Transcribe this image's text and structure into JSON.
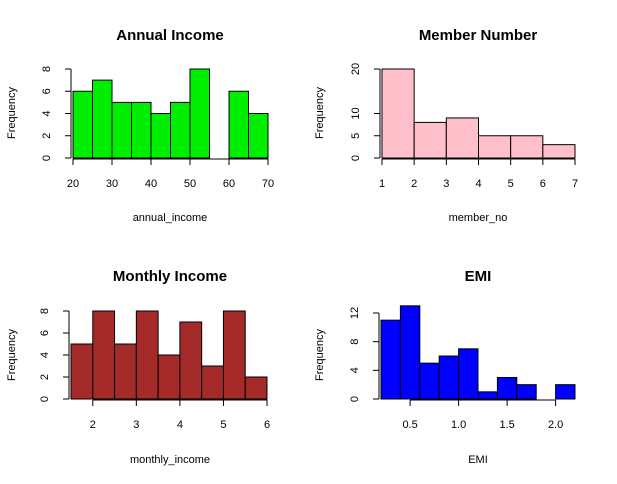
{
  "chart_data": [
    {
      "type": "bar",
      "title": "Annual Income",
      "xlabel": "annual_income",
      "ylabel": "Frequency",
      "color": "#00ee00",
      "bin_edges": [
        20,
        25,
        30,
        35,
        40,
        45,
        50,
        55,
        60,
        65,
        70
      ],
      "values": [
        6,
        7,
        5,
        5,
        4,
        5,
        8,
        0,
        6,
        4
      ],
      "xlim": [
        20,
        70
      ],
      "ylim": [
        0,
        8
      ],
      "xticks": [
        20,
        30,
        40,
        50,
        60,
        70
      ],
      "yticks": [
        0,
        2,
        4,
        6,
        8
      ]
    },
    {
      "type": "bar",
      "title": "Member Number",
      "xlabel": "member_no",
      "ylabel": "Frequency",
      "color": "#ffc0cb",
      "bin_edges": [
        1,
        2,
        3,
        4,
        5,
        6,
        7
      ],
      "values": [
        20,
        8,
        9,
        5,
        5,
        3
      ],
      "xlim": [
        1,
        7
      ],
      "ylim": [
        0,
        20
      ],
      "xticks": [
        1,
        2,
        3,
        4,
        5,
        6,
        7
      ],
      "yticks": [
        0,
        5,
        10,
        20
      ]
    },
    {
      "type": "bar",
      "title": "Monthly Income",
      "xlabel": "monthly_income",
      "ylabel": "Frequency",
      "color": "#a52a2a",
      "bin_edges": [
        1.5,
        2.0,
        2.5,
        3.0,
        3.5,
        4.0,
        4.5,
        5.0,
        5.5,
        6.0
      ],
      "values": [
        5,
        8,
        5,
        8,
        4,
        7,
        3,
        8,
        2
      ],
      "xlim": [
        1.5,
        6.0
      ],
      "ylim": [
        0,
        8
      ],
      "xticks": [
        2,
        3,
        4,
        5,
        6
      ],
      "yticks": [
        0,
        2,
        4,
        6,
        8
      ]
    },
    {
      "type": "bar",
      "title": "EMI",
      "xlabel": "EMI",
      "ylabel": "Frequency",
      "color": "#0000ff",
      "bin_edges": [
        0.2,
        0.4,
        0.6,
        0.8,
        1.0,
        1.2,
        1.4,
        1.6,
        1.8,
        2.0,
        2.2
      ],
      "values": [
        11,
        13,
        5,
        6,
        7,
        1,
        3,
        2,
        0,
        2
      ],
      "xlim": [
        0.2,
        2.2
      ],
      "ylim": [
        0,
        12
      ],
      "xticks": [
        0.5,
        1.0,
        1.5,
        2.0
      ],
      "yticks": [
        0,
        4,
        8,
        12
      ]
    }
  ]
}
